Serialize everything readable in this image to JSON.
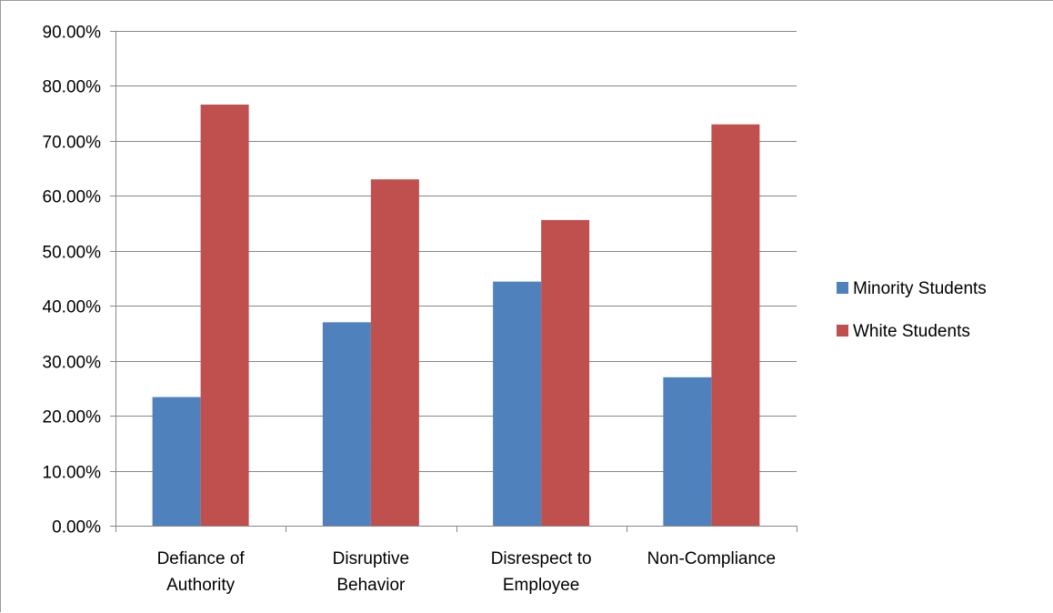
{
  "chart_data": {
    "type": "bar",
    "categories": [
      [
        "Defiance of",
        "Authority"
      ],
      [
        "Disruptive",
        "Behavior"
      ],
      [
        "Disrespect to",
        "Employee"
      ],
      [
        "Non-Compliance"
      ]
    ],
    "series": [
      {
        "name": "Minority Students",
        "color": "#4f81bd",
        "values": [
          23.4,
          37.0,
          44.4,
          27.0
        ]
      },
      {
        "name": "White Students",
        "color": "#c0504d",
        "values": [
          76.6,
          63.0,
          55.6,
          73.0
        ]
      }
    ],
    "y_ticks": [
      "0.00%",
      "10.00%",
      "20.00%",
      "30.00%",
      "40.00%",
      "50.00%",
      "60.00%",
      "70.00%",
      "80.00%",
      "90.00%"
    ],
    "ylim": [
      0,
      90
    ],
    "grid": true,
    "legend_position": "right",
    "gridline_color": "#878787",
    "axis_color": "#878787"
  }
}
